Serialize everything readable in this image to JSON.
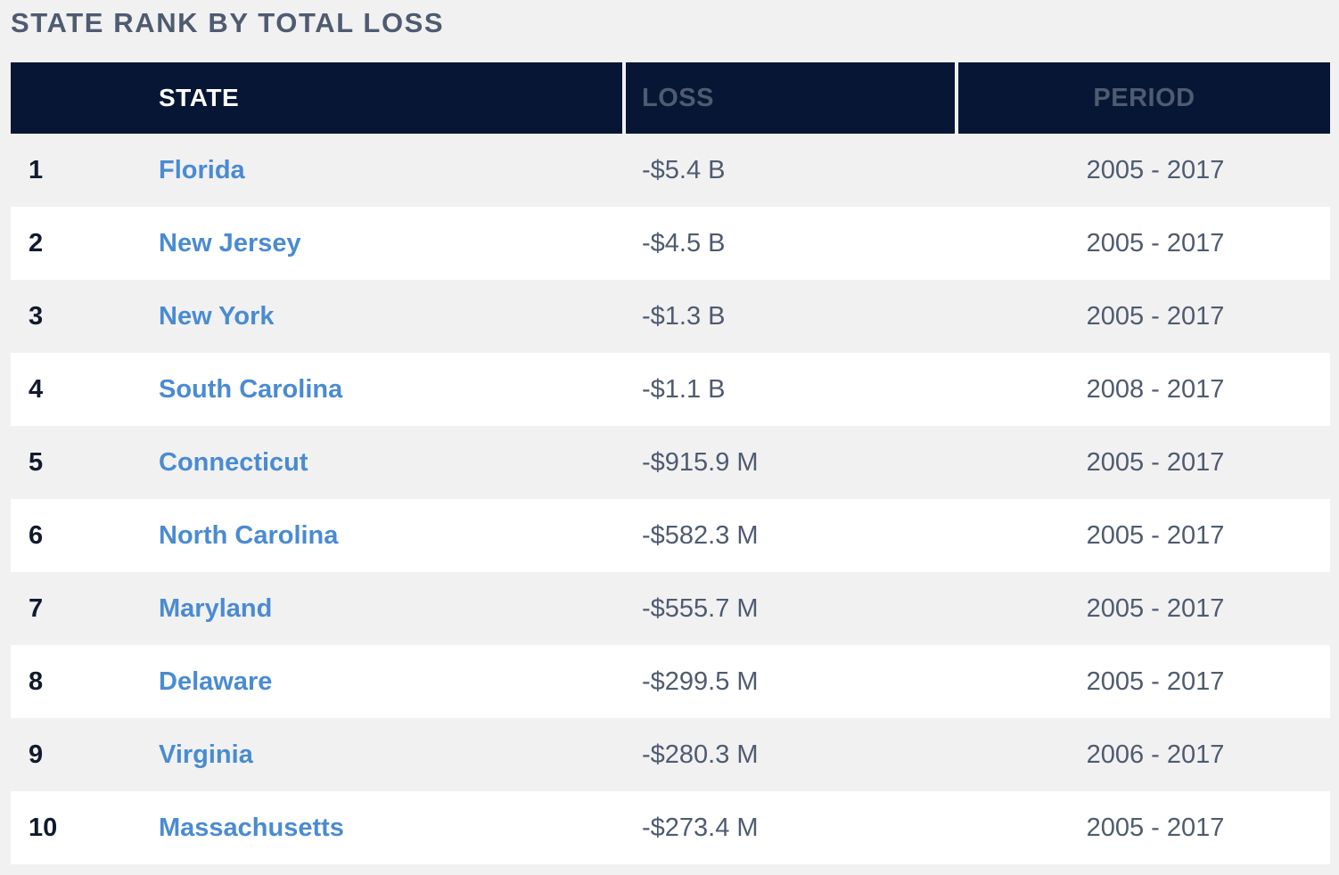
{
  "title": "STATE RANK BY TOTAL LOSS",
  "columns": {
    "state": "STATE",
    "loss": "LOSS",
    "period": "PERIOD"
  },
  "rows": [
    {
      "rank": "1",
      "state": "Florida",
      "loss": "-$5.4 B",
      "period": "2005 - 2017"
    },
    {
      "rank": "2",
      "state": "New Jersey",
      "loss": "-$4.5 B",
      "period": "2005 - 2017"
    },
    {
      "rank": "3",
      "state": "New York",
      "loss": "-$1.3 B",
      "period": "2005 - 2017"
    },
    {
      "rank": "4",
      "state": "South Carolina",
      "loss": "-$1.1 B",
      "period": "2008 - 2017"
    },
    {
      "rank": "5",
      "state": "Connecticut",
      "loss": "-$915.9 M",
      "period": "2005 - 2017"
    },
    {
      "rank": "6",
      "state": "North Carolina",
      "loss": "-$582.3 M",
      "period": "2005 - 2017"
    },
    {
      "rank": "7",
      "state": "Maryland",
      "loss": "-$555.7 M",
      "period": "2005 - 2017"
    },
    {
      "rank": "8",
      "state": "Delaware",
      "loss": "-$299.5 M",
      "period": "2005 - 2017"
    },
    {
      "rank": "9",
      "state": "Virginia",
      "loss": "-$280.3 M",
      "period": "2006 - 2017"
    },
    {
      "rank": "10",
      "state": "Massachusetts",
      "loss": "-$273.4 M",
      "period": "2005 - 2017"
    }
  ],
  "colors": {
    "header_bg": "#081635",
    "link": "#4a8bd2",
    "text_muted": "#4f5b70",
    "rank_text": "#111a2e",
    "row_alt": "#ffffff",
    "page_bg": "#f1f1f2"
  }
}
